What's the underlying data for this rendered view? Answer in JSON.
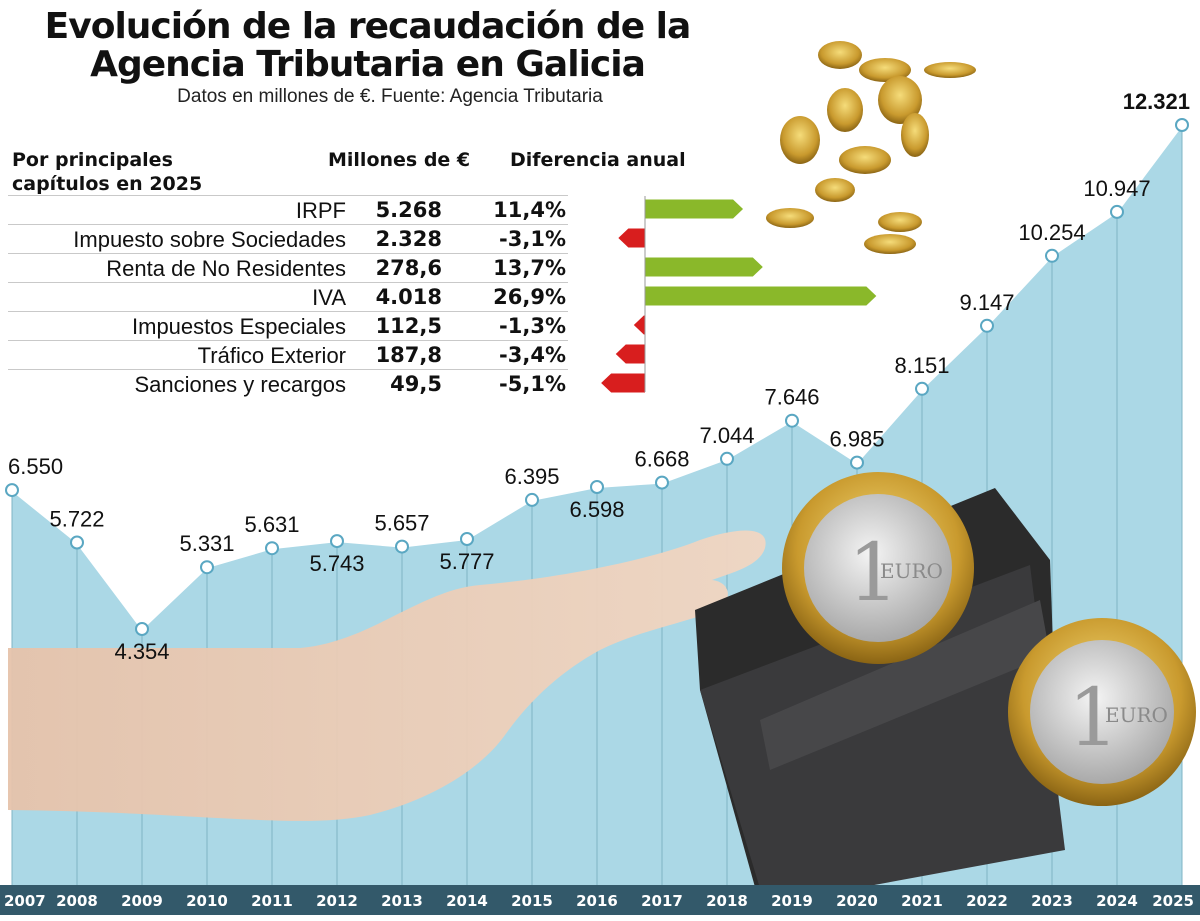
{
  "header": {
    "title_line1": "Evolución de la recaudación de la",
    "title_line2": "Agencia Tributaria en Galicia",
    "subtitle": "Datos en millones de €. Fuente: Agencia Tributaria"
  },
  "breakdown": {
    "heading": "Por principales capítulos en 2025",
    "col_values": "Millones de €",
    "col_change": "Diferencia anual",
    "positive_color": "#8ab82a",
    "negative_color": "#d81e1e",
    "rows": [
      {
        "label": "IRPF",
        "value": "5.268",
        "change_label": "11,4%",
        "change": 11.4
      },
      {
        "label": "Impuesto sobre Sociedades",
        "value": "2.328",
        "change_label": "-3,1%",
        "change": -3.1
      },
      {
        "label": "Renta de No Residentes",
        "value": "278,6",
        "change_label": "13,7%",
        "change": 13.7
      },
      {
        "label": "IVA",
        "value": "4.018",
        "change_label": "26,9%",
        "change": 26.9
      },
      {
        "label": "Impuestos Especiales",
        "value": "112,5",
        "change_label": "-1,3%",
        "change": -1.3
      },
      {
        "label": "Tráfico Exterior",
        "value": "187,8",
        "change_label": "-3,4%",
        "change": -3.4
      },
      {
        "label": "Sanciones y recargos",
        "value": "49,5",
        "change_label": "-5,1%",
        "change": -5.1
      }
    ]
  },
  "chart_data": {
    "type": "area",
    "x": [
      "2007",
      "2008",
      "2009",
      "2010",
      "2011",
      "2012",
      "2013",
      "2014",
      "2015",
      "2016",
      "2017",
      "2018",
      "2019",
      "2020",
      "2021",
      "2022",
      "2023",
      "2024",
      "2025"
    ],
    "values": [
      6550,
      5722,
      4354,
      5331,
      5631,
      5743,
      5657,
      5777,
      6395,
      6598,
      6668,
      7044,
      7646,
      6985,
      8151,
      9147,
      10254,
      10947,
      12321
    ],
    "labels": [
      "6.550",
      "5.722",
      "4.354",
      "5.331",
      "5.631",
      "5.743",
      "5.657",
      "5.777",
      "6.395",
      "6.598",
      "6.668",
      "7.044",
      "7.646",
      "6.985",
      "8.151",
      "9.147",
      "10.254",
      "10.947",
      "12.321"
    ],
    "ylabel": "Millones de €",
    "grid": "vertical",
    "area_color": "#abd8e6",
    "axis_bar_color": "#33596a"
  }
}
